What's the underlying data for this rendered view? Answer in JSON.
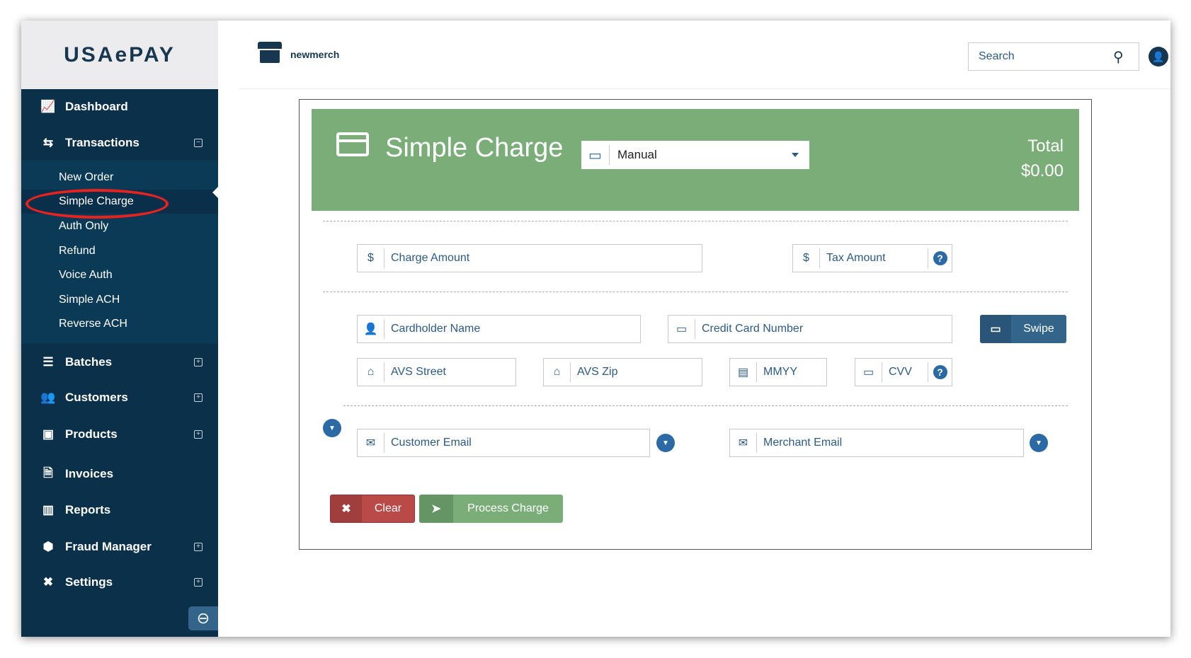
{
  "brand": {
    "logo_text": "USAePAY",
    "merchant": "newmerch"
  },
  "header": {
    "search_placeholder": "Search"
  },
  "sidebar": {
    "items": [
      {
        "label": "Dashboard",
        "icon": "chart-icon"
      },
      {
        "label": "Transactions",
        "icon": "transfer-icon",
        "toggle": "⊟"
      },
      {
        "label": "Batches",
        "icon": "batches-icon",
        "toggle": "⊞"
      },
      {
        "label": "Customers",
        "icon": "users-icon",
        "toggle": "⊞"
      },
      {
        "label": "Products",
        "icon": "box-icon",
        "toggle": "⊞"
      },
      {
        "label": "Invoices",
        "icon": "invoice-icon"
      },
      {
        "label": "Reports",
        "icon": "bar-chart-icon"
      },
      {
        "label": "Fraud Manager",
        "icon": "shield-hand-icon",
        "toggle": "⊞"
      },
      {
        "label": "Settings",
        "icon": "tools-icon",
        "toggle": "⊞"
      }
    ],
    "sub_items": [
      "New Order",
      "Simple Charge",
      "Auth Only",
      "Refund",
      "Voice Auth",
      "Simple ACH",
      "Reverse ACH"
    ],
    "active_sub": "Simple Charge"
  },
  "charge": {
    "title": "Simple Charge",
    "mode_select": "Manual",
    "total_label": "Total",
    "total_value": "$0.00",
    "fields": {
      "charge_amount": "Charge Amount",
      "tax_amount": "Tax Amount",
      "cardholder_name": "Cardholder Name",
      "card_number": "Credit Card Number",
      "avs_street": "AVS Street",
      "avs_zip": "AVS Zip",
      "mmyy": "MMYY",
      "cvv": "CVV",
      "customer_email": "Customer Email",
      "merchant_email": "Merchant Email"
    },
    "swipe_label": "Swipe",
    "clear_label": "Clear",
    "process_label": "Process Charge"
  },
  "colors": {
    "sidebar": "#0b3049",
    "green": "#7bad79",
    "blue": "#2b6aa4",
    "red": "#b94a48",
    "annotation": "#e8231f"
  }
}
